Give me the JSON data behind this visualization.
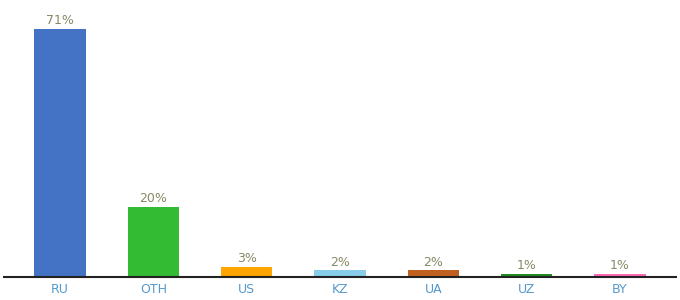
{
  "categories": [
    "RU",
    "OTH",
    "US",
    "KZ",
    "UA",
    "UZ",
    "BY"
  ],
  "values": [
    71,
    20,
    3,
    2,
    2,
    1,
    1
  ],
  "bar_colors": [
    "#4472C4",
    "#33BB33",
    "#FFA500",
    "#87CEEB",
    "#C06020",
    "#228B22",
    "#FF69B4"
  ],
  "labels": [
    "71%",
    "20%",
    "3%",
    "2%",
    "2%",
    "1%",
    "1%"
  ],
  "ylim": [
    0,
    78
  ],
  "background_color": "#ffffff",
  "label_fontsize": 9,
  "tick_fontsize": 9,
  "tick_color": "#5599CC",
  "label_color": "#888866",
  "bar_width": 0.55
}
